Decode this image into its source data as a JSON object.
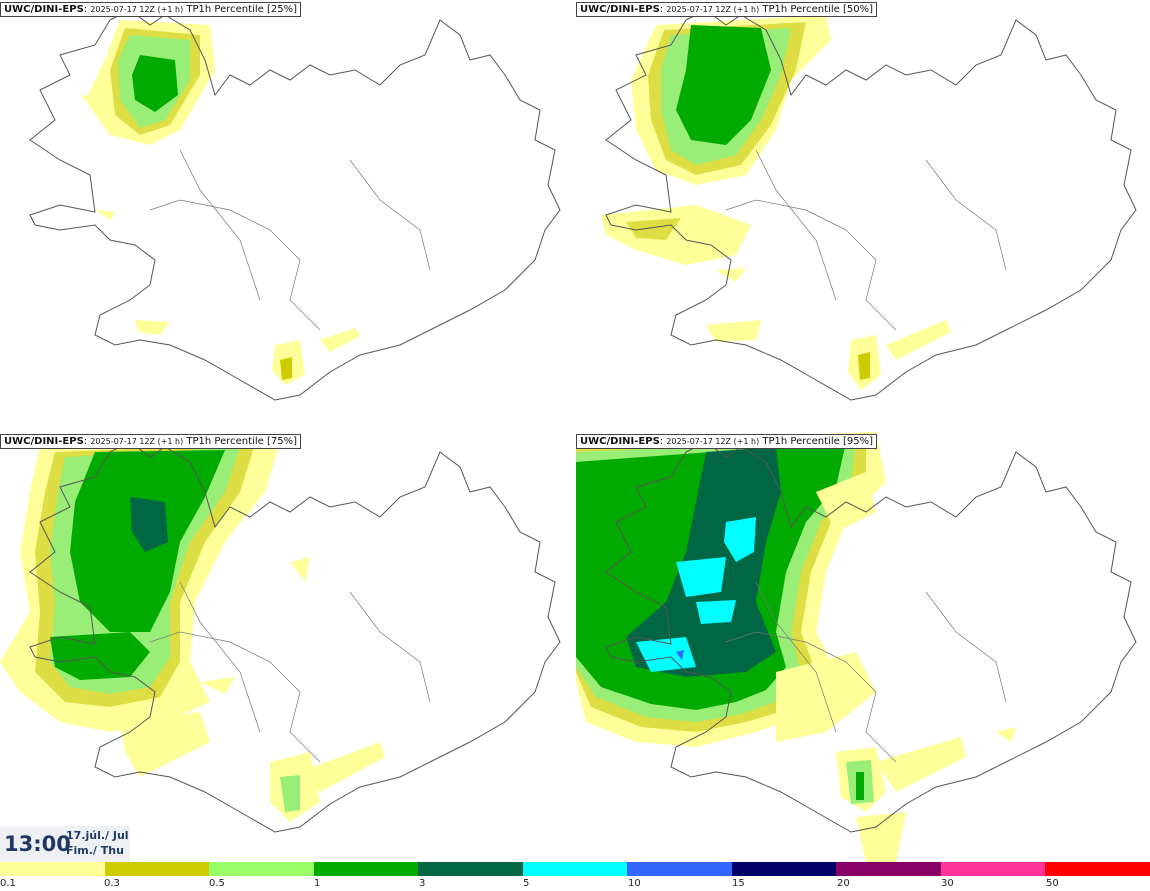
{
  "panels": [
    {
      "model": "UWC/DINI-EPS",
      "run": "2025-07-17 12Z (+1 h)",
      "product": "TP1h Percentile [25%]"
    },
    {
      "model": "UWC/DINI-EPS",
      "run": "2025-07-17 12Z (+1 h)",
      "product": "TP1h Percentile [50%]"
    },
    {
      "model": "UWC/DINI-EPS",
      "run": "2025-07-17 12Z (+1 h)",
      "product": "TP1h Percentile [75%]"
    },
    {
      "model": "UWC/DINI-EPS",
      "run": "2025-07-17 12Z (+1 h)",
      "product": "TP1h Percentile [95%]"
    }
  ],
  "time": {
    "hour": "13:00",
    "date_line1": "17.júl./ Jul",
    "date_line2": "Fim./ Thu"
  },
  "legend": {
    "labels": [
      "0.1",
      "0.3",
      "0.5",
      "1",
      "3",
      "5",
      "10",
      "15",
      "20",
      "30",
      "50"
    ],
    "colors": [
      "#ffff99",
      "#cccc00",
      "#99ff66",
      "#00aa00",
      "#006644",
      "#00ffff",
      "#3366ff",
      "#000066",
      "#880066",
      "#ff3399",
      "#ff0000"
    ]
  },
  "colors": {
    "yellow": "#ffff99",
    "olive": "#dddd44",
    "light_green": "#99ee77",
    "green": "#00aa00",
    "dark_green": "#006644",
    "cyan": "#00ffff",
    "outline": "#555555"
  }
}
